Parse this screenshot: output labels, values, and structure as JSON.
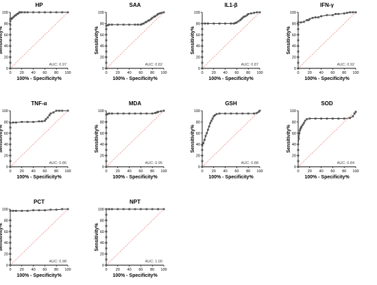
{
  "chart_data": [
    {
      "type": "line",
      "title": "HP",
      "xlabel": "100% - Specificity%",
      "ylabel": "Sensitivity%",
      "xlim": [
        0,
        100
      ],
      "ylim": [
        0,
        100
      ],
      "xticks": [
        "0",
        "20",
        "40",
        "60",
        "80",
        "100"
      ],
      "yticks": [
        "0",
        "20",
        "40",
        "60",
        "80",
        "100"
      ],
      "reference_line": true,
      "auc_label": "AUC: 0.97",
      "x": [
        0,
        0,
        0,
        0,
        0,
        0,
        0,
        0,
        0,
        0,
        0,
        2,
        2,
        4,
        6,
        8,
        10,
        12,
        14,
        16,
        17,
        20,
        25,
        30,
        40,
        50,
        60,
        70,
        80,
        90,
        100
      ],
      "y": [
        0,
        10,
        20,
        30,
        40,
        50,
        60,
        70,
        78,
        84,
        88,
        88,
        89,
        90,
        92,
        94,
        95,
        97,
        98,
        100,
        100,
        100,
        100,
        100,
        100,
        100,
        100,
        100,
        100,
        100,
        100
      ]
    },
    {
      "type": "line",
      "title": "SAA",
      "xlabel": "100% - Specificity%",
      "ylabel": "Sensitivity%",
      "xlim": [
        0,
        100
      ],
      "ylim": [
        0,
        100
      ],
      "xticks": [
        "0",
        "20",
        "40",
        "60",
        "80",
        "100"
      ],
      "yticks": [
        "0",
        "20",
        "40",
        "60",
        "80",
        "100"
      ],
      "reference_line": true,
      "auc_label": "AUC: 0.82",
      "x": [
        0,
        0,
        0,
        0,
        0,
        0,
        0,
        0,
        0,
        3,
        5,
        10,
        20,
        30,
        40,
        50,
        55,
        60,
        62,
        65,
        68,
        70,
        73,
        75,
        78,
        80,
        83,
        85,
        88,
        90,
        93,
        96,
        100
      ],
      "y": [
        0,
        10,
        20,
        30,
        40,
        50,
        60,
        70,
        76,
        77,
        78,
        78,
        78,
        78,
        78,
        78,
        78,
        78,
        79,
        80,
        82,
        83,
        85,
        86,
        88,
        90,
        92,
        93,
        95,
        97,
        98,
        99,
        100
      ]
    },
    {
      "type": "line",
      "title": "IL1-β",
      "xlabel": "100% - Specificity%",
      "ylabel": "Sensitivity%",
      "xlim": [
        0,
        100
      ],
      "ylim": [
        0,
        100
      ],
      "xticks": [
        "0",
        "20",
        "40",
        "60",
        "80",
        "100"
      ],
      "yticks": [
        "0",
        "20",
        "40",
        "60",
        "80",
        "100"
      ],
      "reference_line": true,
      "auc_label": "AUC: 0.87",
      "x": [
        0,
        0,
        0,
        0,
        0,
        0,
        0,
        0,
        0,
        5,
        10,
        20,
        30,
        40,
        50,
        55,
        58,
        60,
        63,
        66,
        68,
        70,
        72,
        75,
        78,
        80,
        85,
        90,
        95,
        100
      ],
      "y": [
        0,
        10,
        20,
        30,
        40,
        50,
        60,
        70,
        80,
        80,
        80,
        80,
        80,
        80,
        80,
        80,
        81,
        82,
        84,
        86,
        88,
        90,
        92,
        93,
        95,
        97,
        98,
        99,
        100,
        100
      ]
    },
    {
      "type": "line",
      "title": "IFN-γ",
      "xlabel": "100% - Specificity%",
      "ylabel": "Sensitivity%",
      "xlim": [
        0,
        100
      ],
      "ylim": [
        0,
        100
      ],
      "xticks": [
        "0",
        "20",
        "40",
        "60",
        "80",
        "100"
      ],
      "yticks": [
        "0",
        "20",
        "40",
        "60",
        "80",
        "100"
      ],
      "reference_line": true,
      "auc_label": "AUC: 0.92",
      "x": [
        0,
        0,
        0,
        0,
        0,
        0,
        0,
        0,
        0,
        0,
        5,
        10,
        15,
        18,
        20,
        25,
        30,
        35,
        40,
        50,
        60,
        65,
        70,
        80,
        85,
        90,
        95,
        100
      ],
      "y": [
        0,
        10,
        20,
        30,
        40,
        50,
        60,
        70,
        78,
        82,
        82,
        83,
        86,
        86,
        88,
        90,
        91,
        91,
        93,
        95,
        95,
        97,
        97,
        98,
        99,
        100,
        100,
        100
      ]
    },
    {
      "type": "line",
      "title": "TNF-α",
      "xlabel": "100% - Specificity%",
      "ylabel": "Sensitivity%",
      "xlim": [
        0,
        100
      ],
      "ylim": [
        0,
        100
      ],
      "xticks": [
        "0",
        "20",
        "40",
        "60",
        "80",
        "100"
      ],
      "yticks": [
        "0",
        "20",
        "40",
        "60",
        "80",
        "100"
      ],
      "reference_line": true,
      "auc_label": "AUC: 0.86",
      "x": [
        0,
        0,
        0,
        0,
        0,
        0,
        0,
        0,
        0,
        5,
        10,
        20,
        30,
        40,
        50,
        55,
        60,
        62,
        65,
        68,
        70,
        75,
        80,
        85,
        90,
        100
      ],
      "y": [
        0,
        10,
        20,
        30,
        40,
        50,
        60,
        70,
        78,
        79,
        79,
        80,
        80,
        80,
        81,
        81,
        82,
        85,
        88,
        92,
        95,
        97,
        100,
        100,
        100,
        100
      ]
    },
    {
      "type": "line",
      "title": "MDA",
      "xlabel": "100% - Specificity%",
      "ylabel": "Sensitivity%",
      "xlim": [
        0,
        100
      ],
      "ylim": [
        0,
        100
      ],
      "xticks": [
        "0",
        "20",
        "40",
        "60",
        "80",
        "100"
      ],
      "yticks": [
        "0",
        "20",
        "40",
        "60",
        "80",
        "100"
      ],
      "reference_line": true,
      "auc_label": "AUC: 0.95",
      "x": [
        0,
        0,
        0,
        0,
        0,
        0,
        0,
        0,
        0,
        0,
        2,
        5,
        10,
        20,
        30,
        40,
        50,
        60,
        70,
        80,
        85,
        88,
        90,
        95,
        100
      ],
      "y": [
        0,
        10,
        20,
        30,
        40,
        50,
        60,
        70,
        80,
        93,
        94,
        95,
        95,
        95,
        95,
        95,
        95,
        95,
        95,
        95,
        96,
        97,
        98,
        99,
        100
      ]
    },
    {
      "type": "line",
      "title": "GSH",
      "xlabel": "100% - Specificity%",
      "ylabel": "Sensitivity%",
      "xlim": [
        0,
        100
      ],
      "ylim": [
        0,
        100
      ],
      "xticks": [
        "0",
        "20",
        "40",
        "60",
        "80",
        "100"
      ],
      "yticks": [
        "0",
        "20",
        "40",
        "60",
        "80",
        "100"
      ],
      "reference_line": true,
      "auc_label": "AUC: 0.88",
      "x": [
        0,
        0,
        0,
        0,
        0,
        2,
        4,
        6,
        8,
        10,
        12,
        14,
        16,
        18,
        20,
        22,
        25,
        30,
        40,
        50,
        60,
        70,
        80,
        90,
        95,
        98,
        100
      ],
      "y": [
        0,
        10,
        20,
        30,
        38,
        42,
        48,
        55,
        60,
        66,
        72,
        78,
        82,
        86,
        90,
        92,
        94,
        95,
        95,
        95,
        95,
        95,
        95,
        95,
        96,
        98,
        100
      ]
    },
    {
      "type": "line",
      "title": "SOD",
      "xlabel": "100% - Specificity%",
      "ylabel": "Sensitivity%",
      "xlim": [
        0,
        100
      ],
      "ylim": [
        0,
        100
      ],
      "xticks": [
        "0",
        "20",
        "40",
        "60",
        "80",
        "100"
      ],
      "yticks": [
        "0",
        "20",
        "40",
        "60",
        "80",
        "100"
      ],
      "reference_line": true,
      "auc_label": "AUC: 0.84",
      "x": [
        0,
        0,
        0,
        0,
        0,
        1,
        2,
        3,
        4,
        5,
        6,
        8,
        10,
        12,
        15,
        20,
        30,
        40,
        50,
        60,
        70,
        80,
        90,
        95,
        98,
        100
      ],
      "y": [
        0,
        10,
        20,
        30,
        40,
        50,
        60,
        65,
        68,
        70,
        72,
        75,
        78,
        82,
        85,
        86,
        86,
        86,
        86,
        86,
        86,
        86,
        87,
        90,
        95,
        98
      ]
    },
    {
      "type": "line",
      "title": "PCT",
      "xlabel": "100% - Specificity%",
      "ylabel": "Sensitivity%",
      "xlim": [
        0,
        100
      ],
      "ylim": [
        0,
        100
      ],
      "xticks": [
        "0",
        "20",
        "40",
        "60",
        "80",
        "100"
      ],
      "yticks": [
        "0",
        "20",
        "40",
        "60",
        "80",
        "100"
      ],
      "reference_line": true,
      "auc_label": "AUC: 0.98",
      "x": [
        0,
        0,
        0,
        0,
        0,
        0,
        0,
        0,
        0,
        0,
        5,
        10,
        20,
        30,
        40,
        50,
        60,
        70,
        80,
        90,
        100
      ],
      "y": [
        0,
        10,
        20,
        30,
        40,
        50,
        60,
        70,
        80,
        97,
        97,
        97,
        97,
        97,
        98,
        98,
        98,
        99,
        99,
        100,
        100
      ]
    },
    {
      "type": "line",
      "title": "NPT",
      "xlabel": "100% - Specificity%",
      "ylabel": "Sensitivity%",
      "xlim": [
        0,
        100
      ],
      "ylim": [
        0,
        100
      ],
      "xticks": [
        "0",
        "20",
        "40",
        "60",
        "80",
        "100"
      ],
      "yticks": [
        "0",
        "20",
        "40",
        "60",
        "80",
        "100"
      ],
      "reference_line": true,
      "auc_label": "AUC: 1.00",
      "x": [
        0,
        0,
        0,
        0,
        0,
        0,
        0,
        0,
        0,
        0,
        0,
        5,
        10,
        20,
        30,
        40,
        50,
        60,
        70,
        80,
        90,
        100
      ],
      "y": [
        0,
        10,
        20,
        30,
        40,
        50,
        60,
        70,
        80,
        90,
        100,
        100,
        100,
        100,
        100,
        100,
        100,
        100,
        100,
        100,
        100,
        100
      ]
    }
  ],
  "colors": {
    "curve": "#333333",
    "marker": "#555555",
    "reference_line": "#f08080",
    "axis": "#000000"
  }
}
